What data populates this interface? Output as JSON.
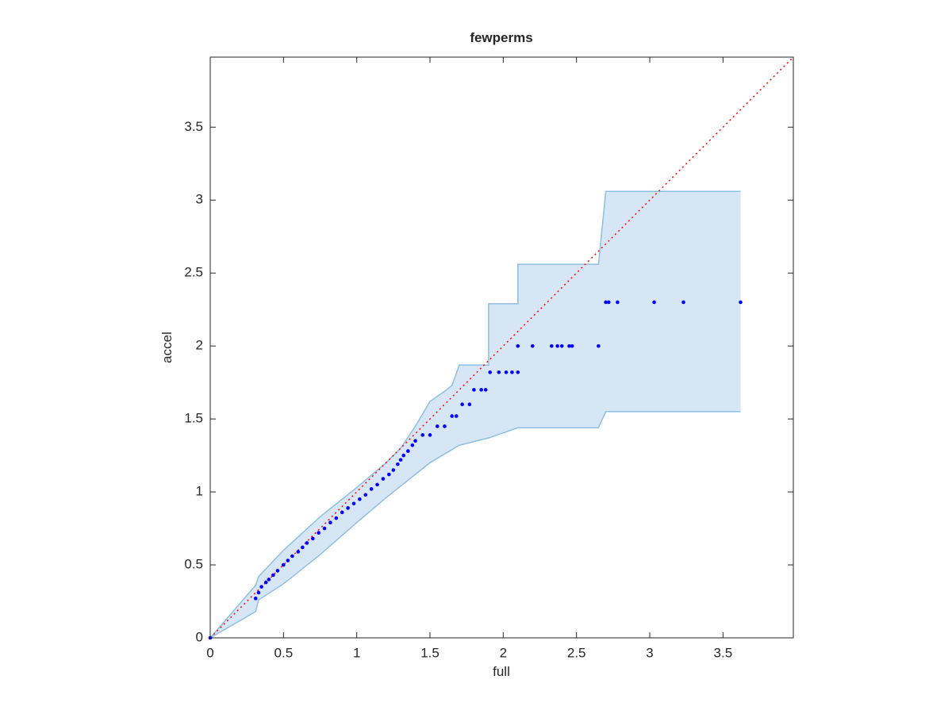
{
  "chart_data": {
    "type": "scatter",
    "title": "fewperms",
    "xlabel": "full",
    "ylabel": "accel",
    "xlim": [
      0,
      3.98
    ],
    "ylim": [
      0,
      3.98
    ],
    "xticks": [
      0,
      0.5,
      1,
      1.5,
      2,
      2.5,
      3,
      3.5
    ],
    "yticks": [
      0,
      0.5,
      1,
      1.5,
      2,
      2.5,
      3,
      3.5
    ],
    "band": {
      "color": "#d6e6f4",
      "edge_color": "#8dbfe0",
      "x": [
        0,
        0.31,
        0.33,
        0.5,
        0.75,
        1.0,
        1.2,
        1.3,
        1.4,
        1.5,
        1.6,
        1.65,
        1.7,
        1.9,
        1.9,
        2.1,
        2.1,
        2.65,
        2.7,
        3.62
      ],
      "upper": [
        0,
        0.36,
        0.42,
        0.6,
        0.83,
        1.03,
        1.2,
        1.3,
        1.45,
        1.62,
        1.69,
        1.73,
        1.87,
        1.87,
        2.29,
        2.29,
        2.56,
        2.56,
        3.06,
        3.06
      ],
      "lower": [
        0,
        0.18,
        0.26,
        0.37,
        0.57,
        0.79,
        0.96,
        1.04,
        1.12,
        1.2,
        1.26,
        1.29,
        1.32,
        1.37,
        1.37,
        1.44,
        1.44,
        1.44,
        1.55,
        1.55
      ]
    },
    "reference": {
      "color": "#ff0000",
      "x": [
        0,
        3.98
      ],
      "values": [
        0,
        3.98
      ]
    },
    "series": [
      {
        "color": "#0000ff",
        "x": [
          0,
          0.31,
          0.33,
          0.35,
          0.38,
          0.4,
          0.43,
          0.46,
          0.5,
          0.53,
          0.56,
          0.6,
          0.63,
          0.66,
          0.7,
          0.74,
          0.78,
          0.82,
          0.86,
          0.9,
          0.94,
          0.98,
          1.02,
          1.06,
          1.1,
          1.14,
          1.18,
          1.22,
          1.25,
          1.28,
          1.3,
          1.32,
          1.35,
          1.38,
          1.4,
          1.45,
          1.5,
          1.55,
          1.6,
          1.65,
          1.68,
          1.72,
          1.77,
          1.8,
          1.85,
          1.88,
          1.91,
          1.97,
          2.02,
          2.06,
          2.1,
          2.1,
          2.2,
          2.33,
          2.37,
          2.4,
          2.45,
          2.47,
          2.65,
          2.7,
          2.72,
          2.78,
          3.03,
          3.23,
          3.62
        ],
        "values": [
          0,
          0.27,
          0.31,
          0.35,
          0.38,
          0.4,
          0.43,
          0.46,
          0.5,
          0.53,
          0.56,
          0.59,
          0.62,
          0.65,
          0.68,
          0.72,
          0.75,
          0.79,
          0.82,
          0.86,
          0.89,
          0.92,
          0.95,
          0.98,
          1.02,
          1.05,
          1.09,
          1.12,
          1.15,
          1.19,
          1.22,
          1.25,
          1.28,
          1.32,
          1.35,
          1.39,
          1.39,
          1.45,
          1.45,
          1.52,
          1.52,
          1.6,
          1.6,
          1.7,
          1.7,
          1.7,
          1.82,
          1.82,
          1.82,
          1.82,
          1.82,
          2.0,
          2.0,
          2.0,
          2.0,
          2.0,
          2.0,
          2.0,
          2.0,
          2.3,
          2.3,
          2.3,
          2.3,
          2.3,
          2.3
        ]
      }
    ]
  }
}
